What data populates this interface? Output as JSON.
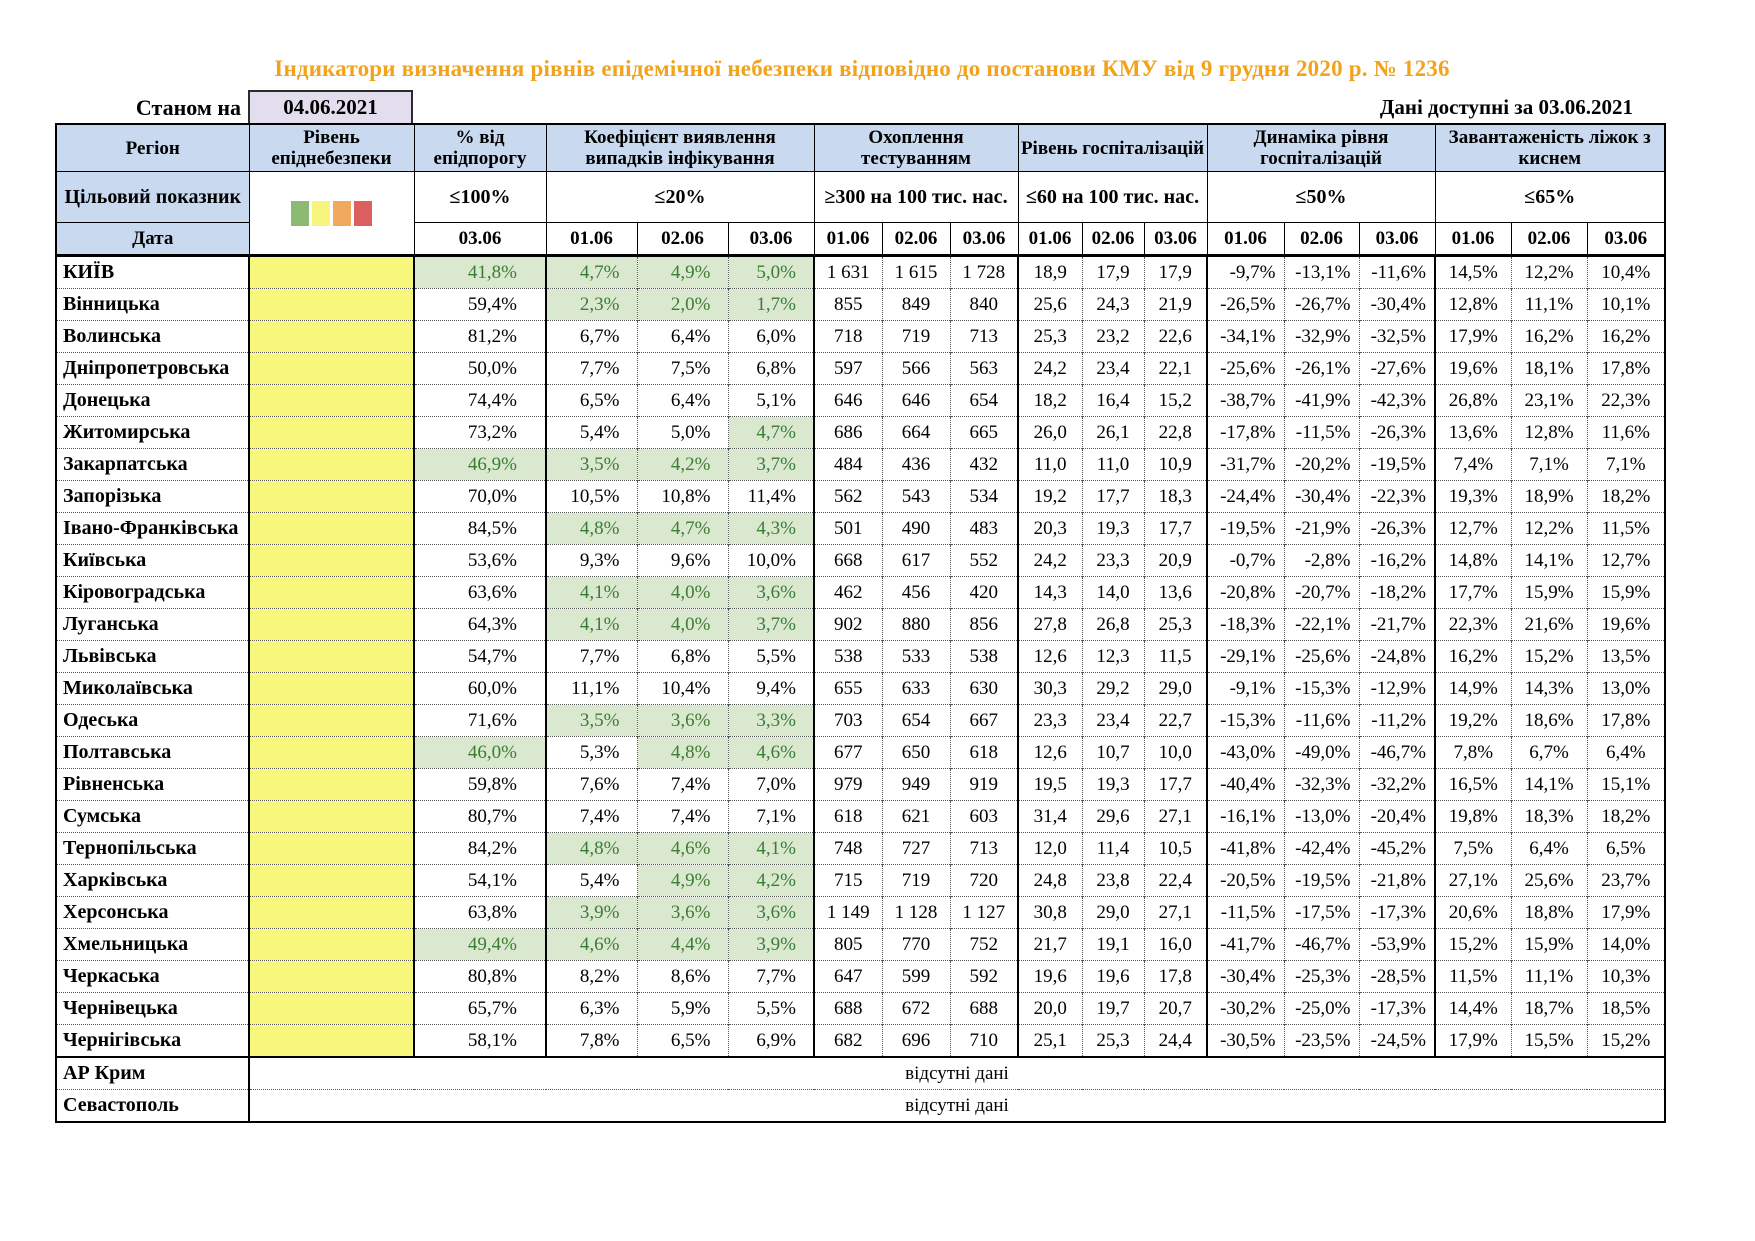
{
  "title": "Індикатори визначення рівнів епідемічної небезпеки відповідно до постанови КМУ від 9 грудня 2020 р. № 1236",
  "meta": {
    "as_of_label": "Станом на",
    "as_of_date": "04.06.2021",
    "available_label": "Дані доступні за",
    "available_date": "03.06.2021"
  },
  "colors": {
    "title_orange": "#F2A31B",
    "header_blue": "#C9DAF0",
    "level_yellow": "#F7F67D",
    "ok_green_bg": "#D9E8CF",
    "ok_green_text": "#3B7D31",
    "as_of_lavender": "#E3DEED"
  },
  "legend": [
    {
      "name": "level-green-swatch",
      "color": "#8CBA72"
    },
    {
      "name": "level-yellow-swatch",
      "color": "#F8F57E"
    },
    {
      "name": "level-orange-swatch",
      "color": "#F0A95E"
    },
    {
      "name": "level-red-swatch",
      "color": "#DC5F5F"
    }
  ],
  "table": {
    "header": {
      "region": "Регіон",
      "level": "Рівень епіднебезпеки",
      "target_label": "Цільовий показник",
      "date_label": "Дата",
      "groups": [
        {
          "label": "% від епідпорогу",
          "target": "≤100%",
          "dates": [
            "03.06"
          ]
        },
        {
          "label": "Коефіцієнт виявлення випадків інфікування",
          "target": "≤20%",
          "dates": [
            "01.06",
            "02.06",
            "03.06"
          ]
        },
        {
          "label": "Охоплення тестуванням",
          "target": "≥300 на 100 тис. нас.",
          "dates": [
            "01.06",
            "02.06",
            "03.06"
          ]
        },
        {
          "label": "Рівень госпіталізацій",
          "target": "≤60 на 100 тис. нас.",
          "dates": [
            "01.06",
            "02.06",
            "03.06"
          ]
        },
        {
          "label": "Динаміка рівня госпіталізацій",
          "target": "≤50%",
          "dates": [
            "01.06",
            "02.06",
            "03.06"
          ]
        },
        {
          "label": "Завантаженість ліжок з киснем",
          "target": "≤65%",
          "dates": [
            "01.06",
            "02.06",
            "03.06"
          ]
        }
      ]
    },
    "rows": [
      {
        "region": "КИЇВ",
        "values": [
          "41,8%",
          "4,7%",
          "4,9%",
          "5,0%",
          "1 631",
          "1 615",
          "1 728",
          "18,9",
          "17,9",
          "17,9",
          "-9,7%",
          "-13,1%",
          "-11,6%",
          "14,5%",
          "12,2%",
          "10,4%"
        ],
        "green": [
          0,
          1,
          2,
          3
        ]
      },
      {
        "region": "Вінницька",
        "values": [
          "59,4%",
          "2,3%",
          "2,0%",
          "1,7%",
          "855",
          "849",
          "840",
          "25,6",
          "24,3",
          "21,9",
          "-26,5%",
          "-26,7%",
          "-30,4%",
          "12,8%",
          "11,1%",
          "10,1%"
        ],
        "green": [
          1,
          2,
          3
        ]
      },
      {
        "region": "Волинська",
        "values": [
          "81,2%",
          "6,7%",
          "6,4%",
          "6,0%",
          "718",
          "719",
          "713",
          "25,3",
          "23,2",
          "22,6",
          "-34,1%",
          "-32,9%",
          "-32,5%",
          "17,9%",
          "16,2%",
          "16,2%"
        ],
        "green": []
      },
      {
        "region": "Дніпропетровська",
        "values": [
          "50,0%",
          "7,7%",
          "7,5%",
          "6,8%",
          "597",
          "566",
          "563",
          "24,2",
          "23,4",
          "22,1",
          "-25,6%",
          "-26,1%",
          "-27,6%",
          "19,6%",
          "18,1%",
          "17,8%"
        ],
        "green": []
      },
      {
        "region": "Донецька",
        "values": [
          "74,4%",
          "6,5%",
          "6,4%",
          "5,1%",
          "646",
          "646",
          "654",
          "18,2",
          "16,4",
          "15,2",
          "-38,7%",
          "-41,9%",
          "-42,3%",
          "26,8%",
          "23,1%",
          "22,3%"
        ],
        "green": []
      },
      {
        "region": "Житомирська",
        "values": [
          "73,2%",
          "5,4%",
          "5,0%",
          "4,7%",
          "686",
          "664",
          "665",
          "26,0",
          "26,1",
          "22,8",
          "-17,8%",
          "-11,5%",
          "-26,3%",
          "13,6%",
          "12,8%",
          "11,6%"
        ],
        "green": [
          3
        ]
      },
      {
        "region": "Закарпатська",
        "values": [
          "46,9%",
          "3,5%",
          "4,2%",
          "3,7%",
          "484",
          "436",
          "432",
          "11,0",
          "11,0",
          "10,9",
          "-31,7%",
          "-20,2%",
          "-19,5%",
          "7,4%",
          "7,1%",
          "7,1%"
        ],
        "green": [
          0,
          1,
          2,
          3
        ]
      },
      {
        "region": "Запорізька",
        "values": [
          "70,0%",
          "10,5%",
          "10,8%",
          "11,4%",
          "562",
          "543",
          "534",
          "19,2",
          "17,7",
          "18,3",
          "-24,4%",
          "-30,4%",
          "-22,3%",
          "19,3%",
          "18,9%",
          "18,2%"
        ],
        "green": []
      },
      {
        "region": "Івано-Франківська",
        "values": [
          "84,5%",
          "4,8%",
          "4,7%",
          "4,3%",
          "501",
          "490",
          "483",
          "20,3",
          "19,3",
          "17,7",
          "-19,5%",
          "-21,9%",
          "-26,3%",
          "12,7%",
          "12,2%",
          "11,5%"
        ],
        "green": [
          1,
          2,
          3
        ]
      },
      {
        "region": "Київська",
        "values": [
          "53,6%",
          "9,3%",
          "9,6%",
          "10,0%",
          "668",
          "617",
          "552",
          "24,2",
          "23,3",
          "20,9",
          "-0,7%",
          "-2,8%",
          "-16,2%",
          "14,8%",
          "14,1%",
          "12,7%"
        ],
        "green": []
      },
      {
        "region": "Кіровоградська",
        "values": [
          "63,6%",
          "4,1%",
          "4,0%",
          "3,6%",
          "462",
          "456",
          "420",
          "14,3",
          "14,0",
          "13,6",
          "-20,8%",
          "-20,7%",
          "-18,2%",
          "17,7%",
          "15,9%",
          "15,9%"
        ],
        "green": [
          1,
          2,
          3
        ]
      },
      {
        "region": "Луганська",
        "values": [
          "64,3%",
          "4,1%",
          "4,0%",
          "3,7%",
          "902",
          "880",
          "856",
          "27,8",
          "26,8",
          "25,3",
          "-18,3%",
          "-22,1%",
          "-21,7%",
          "22,3%",
          "21,6%",
          "19,6%"
        ],
        "green": [
          1,
          2,
          3
        ]
      },
      {
        "region": "Львівська",
        "values": [
          "54,7%",
          "7,7%",
          "6,8%",
          "5,5%",
          "538",
          "533",
          "538",
          "12,6",
          "12,3",
          "11,5",
          "-29,1%",
          "-25,6%",
          "-24,8%",
          "16,2%",
          "15,2%",
          "13,5%"
        ],
        "green": []
      },
      {
        "region": "Миколаївська",
        "values": [
          "60,0%",
          "11,1%",
          "10,4%",
          "9,4%",
          "655",
          "633",
          "630",
          "30,3",
          "29,2",
          "29,0",
          "-9,1%",
          "-15,3%",
          "-12,9%",
          "14,9%",
          "14,3%",
          "13,0%"
        ],
        "green": []
      },
      {
        "region": "Одеська",
        "values": [
          "71,6%",
          "3,5%",
          "3,6%",
          "3,3%",
          "703",
          "654",
          "667",
          "23,3",
          "23,4",
          "22,7",
          "-15,3%",
          "-11,6%",
          "-11,2%",
          "19,2%",
          "18,6%",
          "17,8%"
        ],
        "green": [
          1,
          2,
          3
        ]
      },
      {
        "region": "Полтавська",
        "values": [
          "46,0%",
          "5,3%",
          "4,8%",
          "4,6%",
          "677",
          "650",
          "618",
          "12,6",
          "10,7",
          "10,0",
          "-43,0%",
          "-49,0%",
          "-46,7%",
          "7,8%",
          "6,7%",
          "6,4%"
        ],
        "green": [
          0,
          2,
          3
        ]
      },
      {
        "region": "Рівненська",
        "values": [
          "59,8%",
          "7,6%",
          "7,4%",
          "7,0%",
          "979",
          "949",
          "919",
          "19,5",
          "19,3",
          "17,7",
          "-40,4%",
          "-32,3%",
          "-32,2%",
          "16,5%",
          "14,1%",
          "15,1%"
        ],
        "green": []
      },
      {
        "region": "Сумська",
        "values": [
          "80,7%",
          "7,4%",
          "7,4%",
          "7,1%",
          "618",
          "621",
          "603",
          "31,4",
          "29,6",
          "27,1",
          "-16,1%",
          "-13,0%",
          "-20,4%",
          "19,8%",
          "18,3%",
          "18,2%"
        ],
        "green": []
      },
      {
        "region": "Тернопільська",
        "values": [
          "84,2%",
          "4,8%",
          "4,6%",
          "4,1%",
          "748",
          "727",
          "713",
          "12,0",
          "11,4",
          "10,5",
          "-41,8%",
          "-42,4%",
          "-45,2%",
          "7,5%",
          "6,4%",
          "6,5%"
        ],
        "green": [
          1,
          2,
          3
        ]
      },
      {
        "region": "Харківська",
        "values": [
          "54,1%",
          "5,4%",
          "4,9%",
          "4,2%",
          "715",
          "719",
          "720",
          "24,8",
          "23,8",
          "22,4",
          "-20,5%",
          "-19,5%",
          "-21,8%",
          "27,1%",
          "25,6%",
          "23,7%"
        ],
        "green": [
          2,
          3
        ]
      },
      {
        "region": "Херсонська",
        "values": [
          "63,8%",
          "3,9%",
          "3,6%",
          "3,6%",
          "1 149",
          "1 128",
          "1 127",
          "30,8",
          "29,0",
          "27,1",
          "-11,5%",
          "-17,5%",
          "-17,3%",
          "20,6%",
          "18,8%",
          "17,9%"
        ],
        "green": [
          1,
          2,
          3
        ]
      },
      {
        "region": "Хмельницька",
        "values": [
          "49,4%",
          "4,6%",
          "4,4%",
          "3,9%",
          "805",
          "770",
          "752",
          "21,7",
          "19,1",
          "16,0",
          "-41,7%",
          "-46,7%",
          "-53,9%",
          "15,2%",
          "15,9%",
          "14,0%"
        ],
        "green": [
          0,
          1,
          2,
          3
        ]
      },
      {
        "region": "Черкаська",
        "values": [
          "80,8%",
          "8,2%",
          "8,6%",
          "7,7%",
          "647",
          "599",
          "592",
          "19,6",
          "19,6",
          "17,8",
          "-30,4%",
          "-25,3%",
          "-28,5%",
          "11,5%",
          "11,1%",
          "10,3%"
        ],
        "green": []
      },
      {
        "region": "Чернівецька",
        "values": [
          "65,7%",
          "6,3%",
          "5,9%",
          "5,5%",
          "688",
          "672",
          "688",
          "20,0",
          "19,7",
          "20,7",
          "-30,2%",
          "-25,0%",
          "-17,3%",
          "14,4%",
          "18,7%",
          "18,5%"
        ],
        "green": []
      },
      {
        "region": "Чернігівська",
        "values": [
          "58,1%",
          "7,8%",
          "6,5%",
          "6,9%",
          "682",
          "696",
          "710",
          "25,1",
          "25,3",
          "24,4",
          "-30,5%",
          "-23,5%",
          "-24,5%",
          "17,9%",
          "15,5%",
          "15,2%"
        ],
        "green": []
      },
      {
        "region": "АР Крим",
        "no_data": "відсутні дані"
      },
      {
        "region": "Севастополь",
        "no_data": "відсутні дані"
      }
    ]
  }
}
